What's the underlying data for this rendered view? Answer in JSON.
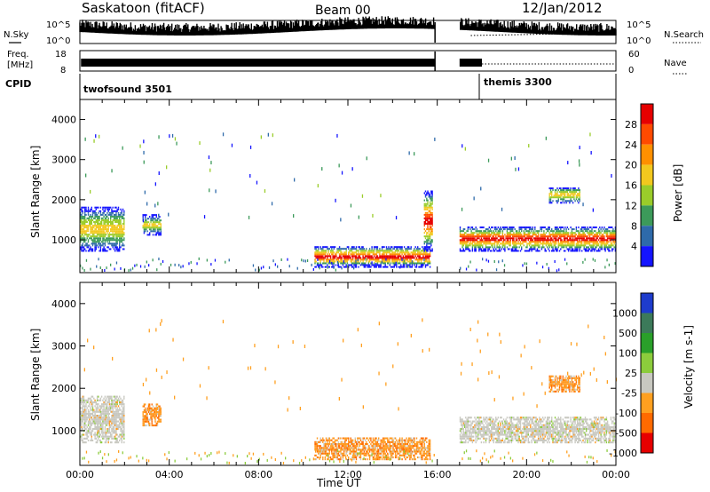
{
  "header": {
    "title": "Saskatoon (fitACF)",
    "beam": "Beam 00",
    "date": "12/Jan/2012"
  },
  "panels": {
    "nsky": {
      "label": "N.Sky",
      "ticks_left": [
        "10^5",
        "10^0"
      ],
      "ticks_right": [
        "10^5",
        "10^0"
      ],
      "right_label": "N.Search"
    },
    "freq": {
      "label_line1": "Freq.",
      "label_line2": "[MHz]",
      "ticks_left": [
        "18",
        "8"
      ],
      "ticks_right": [
        "60",
        "0"
      ],
      "right_label": "Nave"
    },
    "cpid": {
      "label": "CPID",
      "modes": [
        "twofsound 3501",
        "themis 3300"
      ]
    }
  },
  "chart_data": [
    {
      "type": "heatmap",
      "panel": "power",
      "ylabel": "Slant Range [km]",
      "y_ticks": [
        "4000",
        "3000",
        "2000",
        "1000"
      ],
      "ylim": [
        180,
        4500
      ],
      "x_ticks": [
        "00:00",
        "04:00",
        "08:00",
        "12:00",
        "16:00",
        "20:00",
        "00:00"
      ],
      "xlim_hours": [
        0,
        24
      ],
      "colorbar": {
        "label": "Power [dB]",
        "ticks": [
          "28",
          "24",
          "20",
          "16",
          "12",
          "8",
          "4"
        ],
        "colors": [
          "#e60000",
          "#ff4a00",
          "#ff9000",
          "#f2c81e",
          "#9acc2a",
          "#3c9a5a",
          "#2e6aaa",
          "#1414ff"
        ]
      },
      "features": [
        {
          "hours": [
            0.0,
            2.0
          ],
          "range_km": [
            700,
            1800
          ],
          "level": "medium"
        },
        {
          "hours": [
            2.8,
            3.6
          ],
          "range_km": [
            1100,
            1600
          ],
          "level": "medium"
        },
        {
          "hours": [
            10.5,
            15.7
          ],
          "range_km": [
            300,
            800
          ],
          "level": "high"
        },
        {
          "hours": [
            15.4,
            15.8
          ],
          "range_km": [
            700,
            2200
          ],
          "level": "high"
        },
        {
          "hours": [
            17.0,
            24.0
          ],
          "range_km": [
            700,
            1300
          ],
          "level": "high"
        },
        {
          "hours": [
            21.0,
            22.4
          ],
          "range_km": [
            1900,
            2300
          ],
          "level": "medium"
        }
      ]
    },
    {
      "type": "heatmap",
      "panel": "velocity",
      "ylabel": "Slant Range [km]",
      "y_ticks": [
        "4000",
        "3000",
        "2000",
        "1000"
      ],
      "ylim": [
        180,
        4500
      ],
      "x_ticks": [
        "00:00",
        "04:00",
        "08:00",
        "12:00",
        "16:00",
        "20:00",
        "00:00"
      ],
      "xlim_hours": [
        0,
        24
      ],
      "xlabel": "Time UT",
      "colorbar": {
        "label": "Velocity [m s-1]",
        "ticks": [
          "1000",
          "500",
          "100",
          "25",
          "-25",
          "-100",
          "-500",
          "-1000"
        ],
        "colors": [
          "#1e3ccc",
          "#3c7a5a",
          "#2aa02a",
          "#8ccc3c",
          "#c8c8c0",
          "#ffa020",
          "#ff6a00",
          "#e60000"
        ]
      },
      "features": [
        {
          "hours": [
            0.0,
            2.0
          ],
          "range_km": [
            700,
            1800
          ],
          "level": "ground"
        },
        {
          "hours": [
            2.8,
            3.6
          ],
          "range_km": [
            1100,
            1600
          ],
          "level": "away"
        },
        {
          "hours": [
            10.5,
            15.7
          ],
          "range_km": [
            300,
            800
          ],
          "level": "away"
        },
        {
          "hours": [
            17.0,
            24.0
          ],
          "range_km": [
            700,
            1300
          ],
          "level": "ground"
        },
        {
          "hours": [
            21.0,
            22.4
          ],
          "range_km": [
            1900,
            2300
          ],
          "level": "away"
        }
      ]
    }
  ]
}
